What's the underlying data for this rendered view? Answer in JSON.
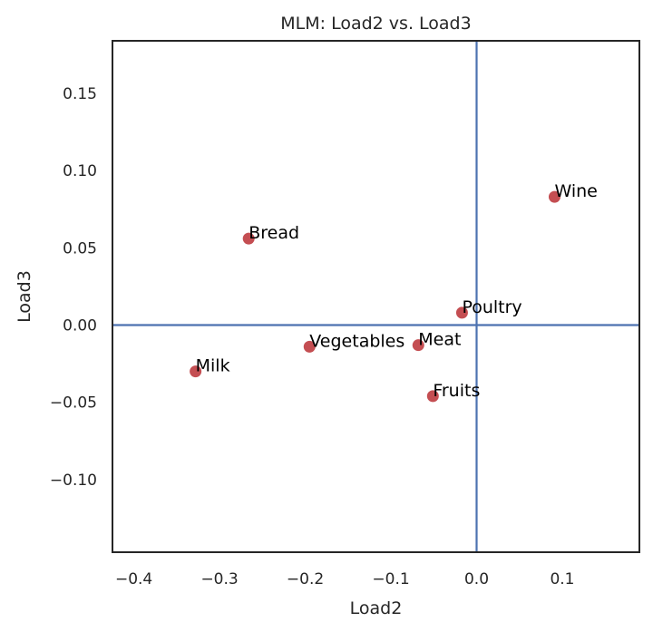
{
  "chart_data": {
    "type": "scatter",
    "title": "MLM: Load2 vs. Load3",
    "xlabel": "Load2",
    "ylabel": "Load3",
    "xlim": [
      -0.425,
      0.19
    ],
    "ylim": [
      -0.147,
      0.184
    ],
    "xticks": [
      -0.4,
      -0.3,
      -0.2,
      -0.1,
      0.0,
      0.1
    ],
    "xtick_labels": [
      "−0.4",
      "−0.3",
      "−0.2",
      "−0.1",
      "0.0",
      "0.1"
    ],
    "yticks": [
      0.15,
      0.1,
      0.05,
      0.0,
      -0.05,
      -0.1
    ],
    "ytick_labels": [
      "0.15",
      "0.10",
      "0.05",
      "0.00",
      "−0.05",
      "−0.10"
    ],
    "grid": false,
    "reference_lines": {
      "x": 0.0,
      "y": 0.0
    },
    "points": [
      {
        "label": "Wine",
        "x": 0.091,
        "y": 0.083
      },
      {
        "label": "Bread",
        "x": -0.266,
        "y": 0.056
      },
      {
        "label": "Poultry",
        "x": -0.017,
        "y": 0.008
      },
      {
        "label": "Meat",
        "x": -0.068,
        "y": -0.013
      },
      {
        "label": "Vegetables",
        "x": -0.195,
        "y": -0.014
      },
      {
        "label": "Milk",
        "x": -0.328,
        "y": -0.03
      },
      {
        "label": "Fruits",
        "x": -0.051,
        "y": -0.046
      }
    ],
    "colors": {
      "point": "#c44e52",
      "reference_line": "#4c72b0",
      "frame": "#262626",
      "text": "#262626"
    }
  }
}
